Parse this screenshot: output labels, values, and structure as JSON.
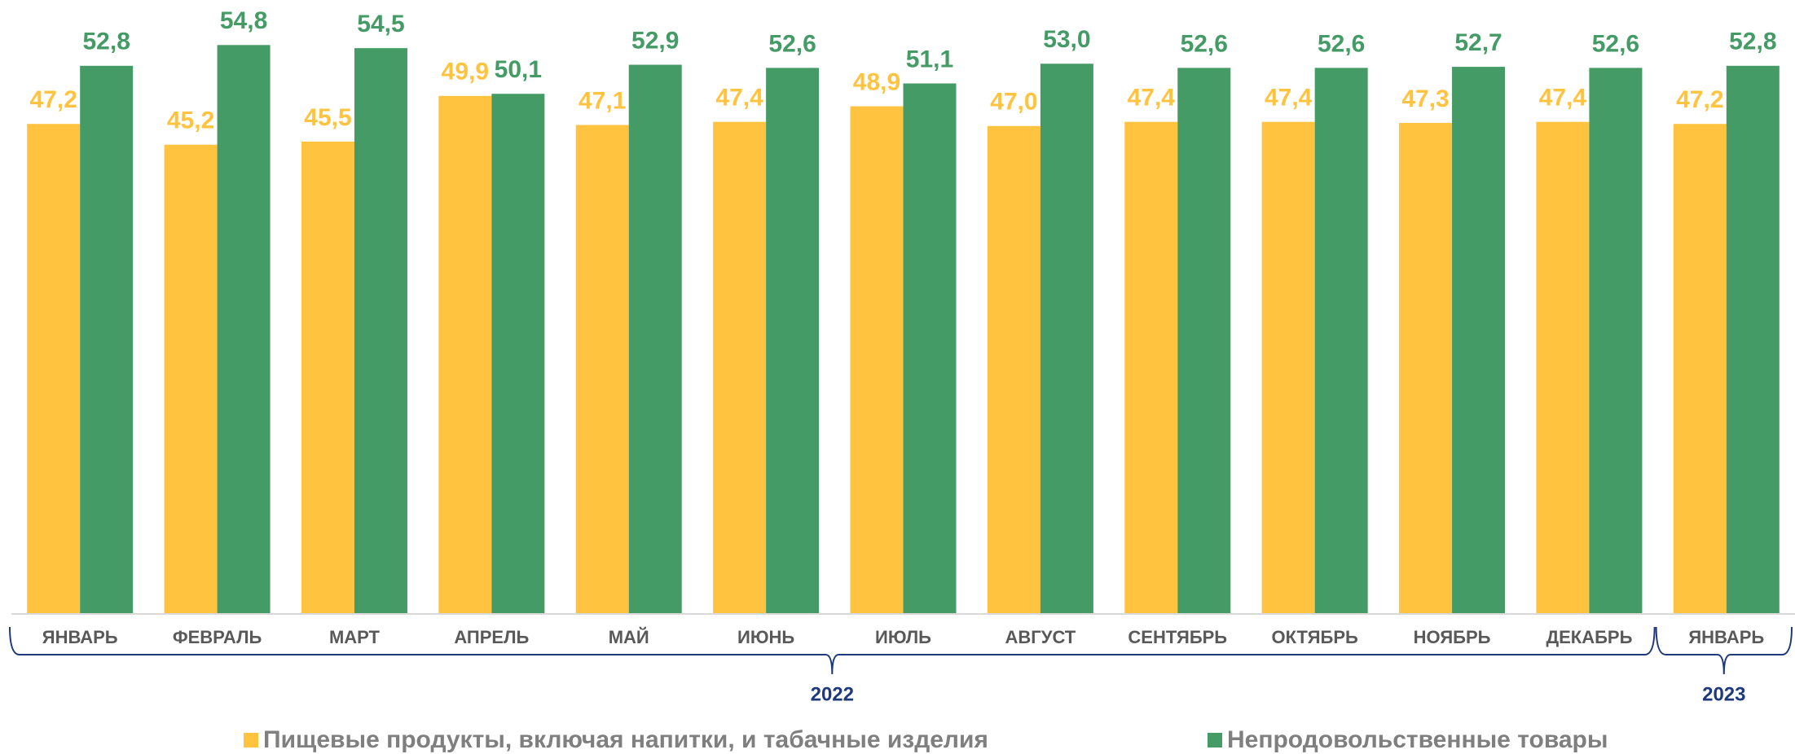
{
  "chart_data": {
    "type": "bar",
    "categories": [
      "ЯНВАРЬ",
      "ФЕВРАЛЬ",
      "МАРТ",
      "АПРЕЛЬ",
      "МАЙ",
      "ИЮНЬ",
      "ИЮЛЬ",
      "АВГУСТ",
      "СЕНТЯБРЬ",
      "ОКТЯБРЬ",
      "НОЯБРЬ",
      "ДЕКАБРЬ",
      "ЯНВАРЬ"
    ],
    "years": [
      {
        "label": "2022",
        "count": 12
      },
      {
        "label": "2023",
        "count": 1
      }
    ],
    "series": [
      {
        "name": "Пищевые продукты, включая напитки, и табачные изделия",
        "color": "#FFC340",
        "values": [
          47.2,
          45.2,
          45.5,
          49.9,
          47.1,
          47.4,
          48.9,
          47.0,
          47.4,
          47.4,
          47.3,
          47.4,
          47.2
        ],
        "value_labels": [
          "47,2",
          "45,2",
          "45,5",
          "49,9",
          "47,1",
          "47,4",
          "48,9",
          "47,0",
          "47,4",
          "47,4",
          "47,3",
          "47,4",
          "47,2"
        ]
      },
      {
        "name": "Непродовольственные товары",
        "color": "#459B65",
        "values": [
          52.8,
          54.8,
          54.5,
          50.1,
          52.9,
          52.6,
          51.1,
          53.0,
          52.6,
          52.6,
          52.7,
          52.6,
          52.8
        ],
        "value_labels": [
          "52,8",
          "54,8",
          "54,5",
          "50,1",
          "52,9",
          "52,6",
          "51,1",
          "53,0",
          "52,6",
          "52,6",
          "52,7",
          "52,6",
          "52,8"
        ]
      }
    ],
    "ylim": [
      0,
      56
    ]
  }
}
